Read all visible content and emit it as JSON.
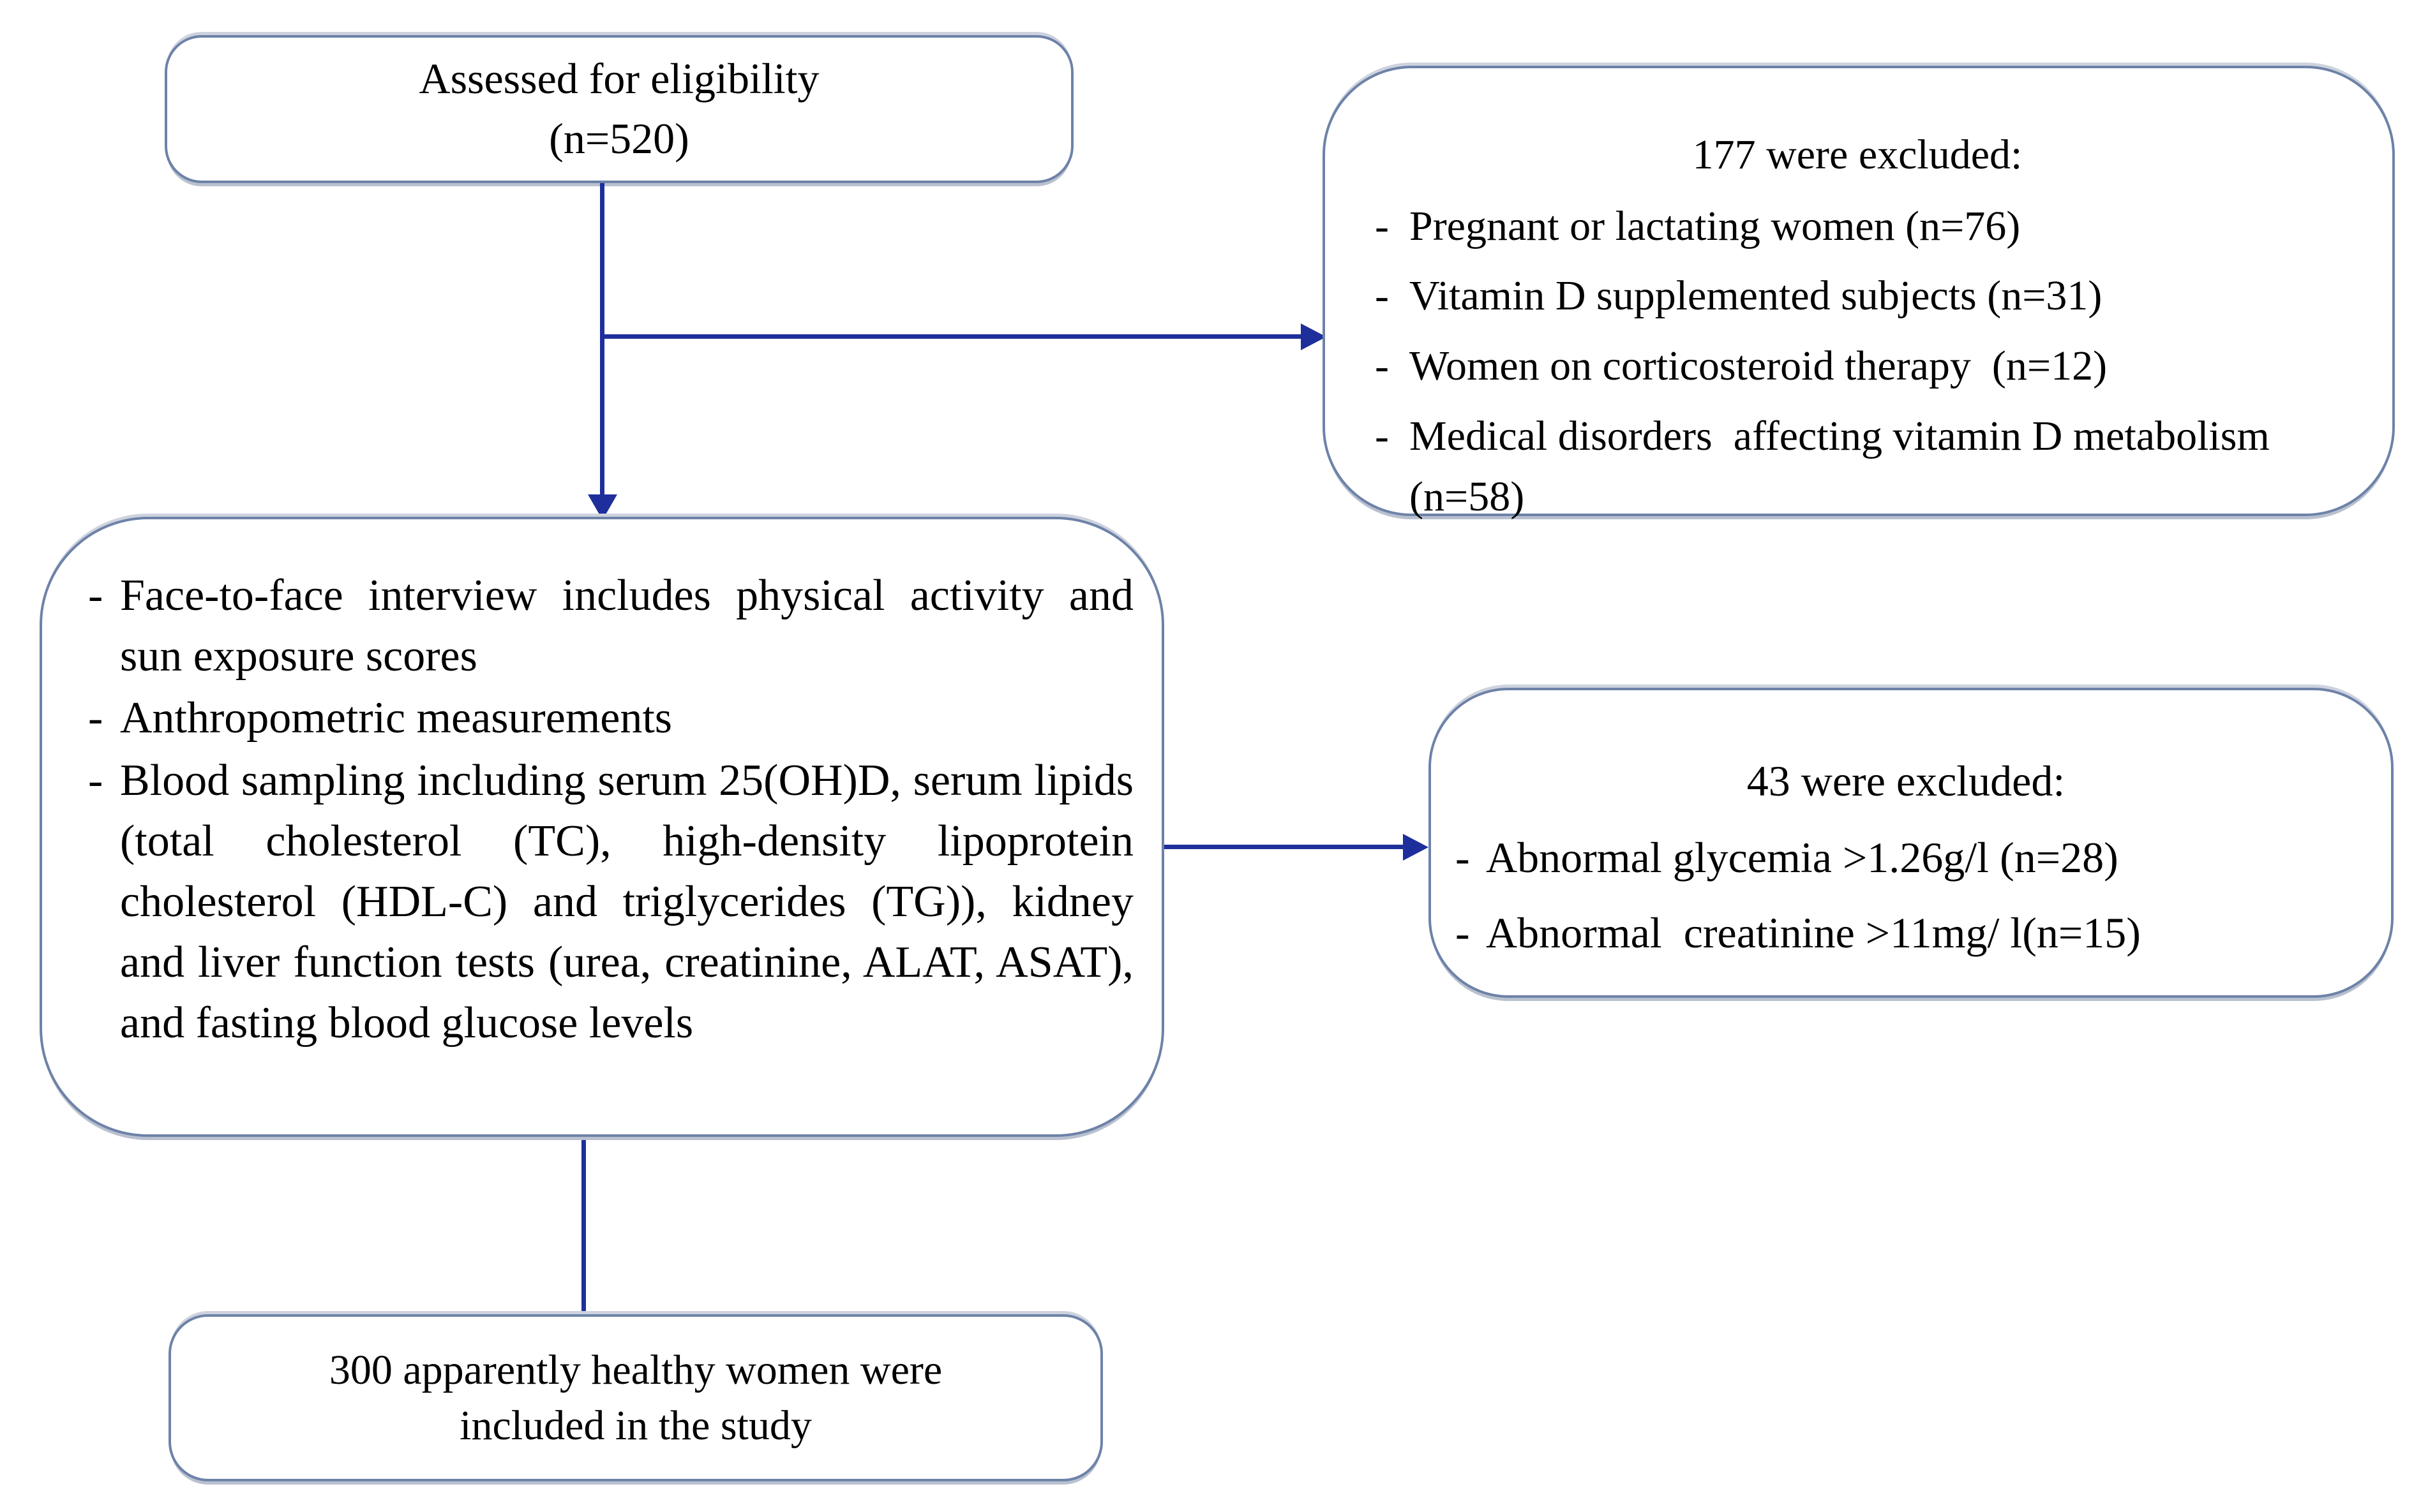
{
  "palette": {
    "arrow_color": "#1e2f9c",
    "box_border_color": "#6d82a8",
    "box_fill": "#ffffff",
    "text_color": "#000000"
  },
  "flowchart": {
    "bullet_marker": "-",
    "box_assessed": {
      "lines": [
        "Assessed for eligibility",
        "(n=520)"
      ]
    },
    "box_excluded_screening": {
      "title": "177 were excluded:",
      "items": [
        "Pregnant or lactating women (n=76)",
        "Vitamin D supplemented subjects (n=31)",
        "Women on corticosteroid therapy  (n=12)",
        "Medical disorders  affecting vitamin D metabolism (n=58)"
      ]
    },
    "box_procedures": {
      "items": [
        "Face-to-face interview includes physical activity and sun exposure scores",
        "Anthropometric measurements",
        "Blood sampling including serum 25(OH)D, serum lipids (total cholesterol (TC), high-density lipoprotein cholesterol (HDL-C) and triglycerides (TG)), kidney and liver function tests (urea, creatinine, ALAT, ASAT), and fasting blood glucose levels"
      ]
    },
    "box_excluded_labs": {
      "title": "43 were excluded:",
      "items": [
        "Abnormal glycemia >1.26g/l (n=28)",
        "Abnormal  creatinine >11mg/ l(n=15)"
      ]
    },
    "box_included": {
      "lines": [
        "300 apparently healthy women were",
        "included in the study"
      ]
    }
  }
}
